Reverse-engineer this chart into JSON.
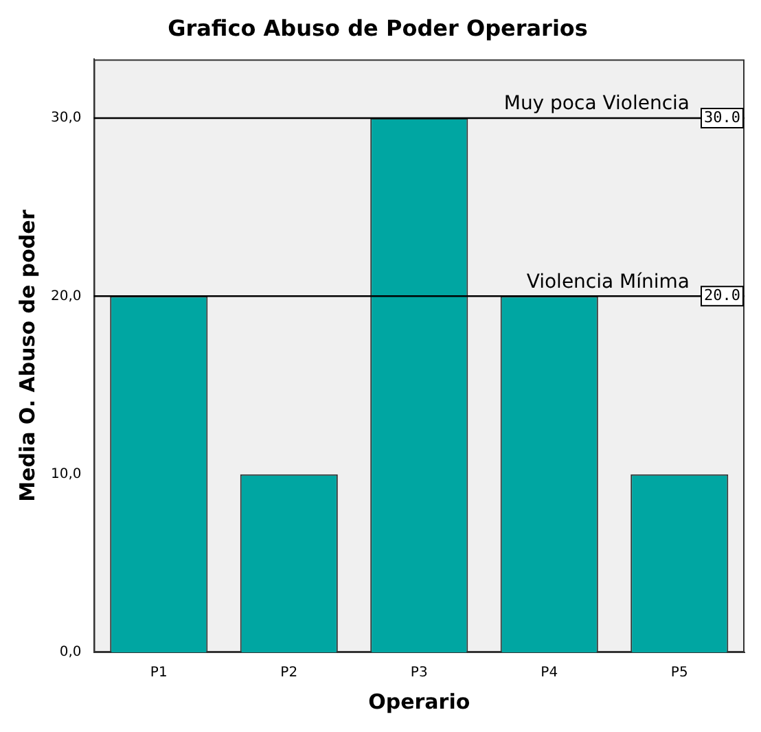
{
  "chart_data": {
    "type": "bar",
    "title": "Grafico Abuso de Poder Operarios",
    "xlabel": "Operario",
    "ylabel": "Media O. Abuso de poder",
    "categories": [
      "P1",
      "P2",
      "P3",
      "P4",
      "P5"
    ],
    "values": [
      20,
      10,
      30,
      20,
      10
    ],
    "color": "#00a6a2",
    "ylim": [
      0,
      33.3
    ],
    "yticks": [
      {
        "value": 0,
        "label": "0,0"
      },
      {
        "value": 10,
        "label": "10,0"
      },
      {
        "value": 20,
        "label": "20,0"
      },
      {
        "value": 30,
        "label": "30,0"
      }
    ],
    "grid": false,
    "legend": false,
    "ref_lines": [
      {
        "axis": "y",
        "value": 30,
        "label": "Muy poca Violencia",
        "color": "#000000"
      },
      {
        "axis": "y",
        "value": 20,
        "label": "Violencia Mínima",
        "color": "#000000"
      }
    ],
    "annotations": [
      {
        "text": "30.0",
        "y": 30
      },
      {
        "text": "20.0",
        "y": 20
      }
    ]
  }
}
